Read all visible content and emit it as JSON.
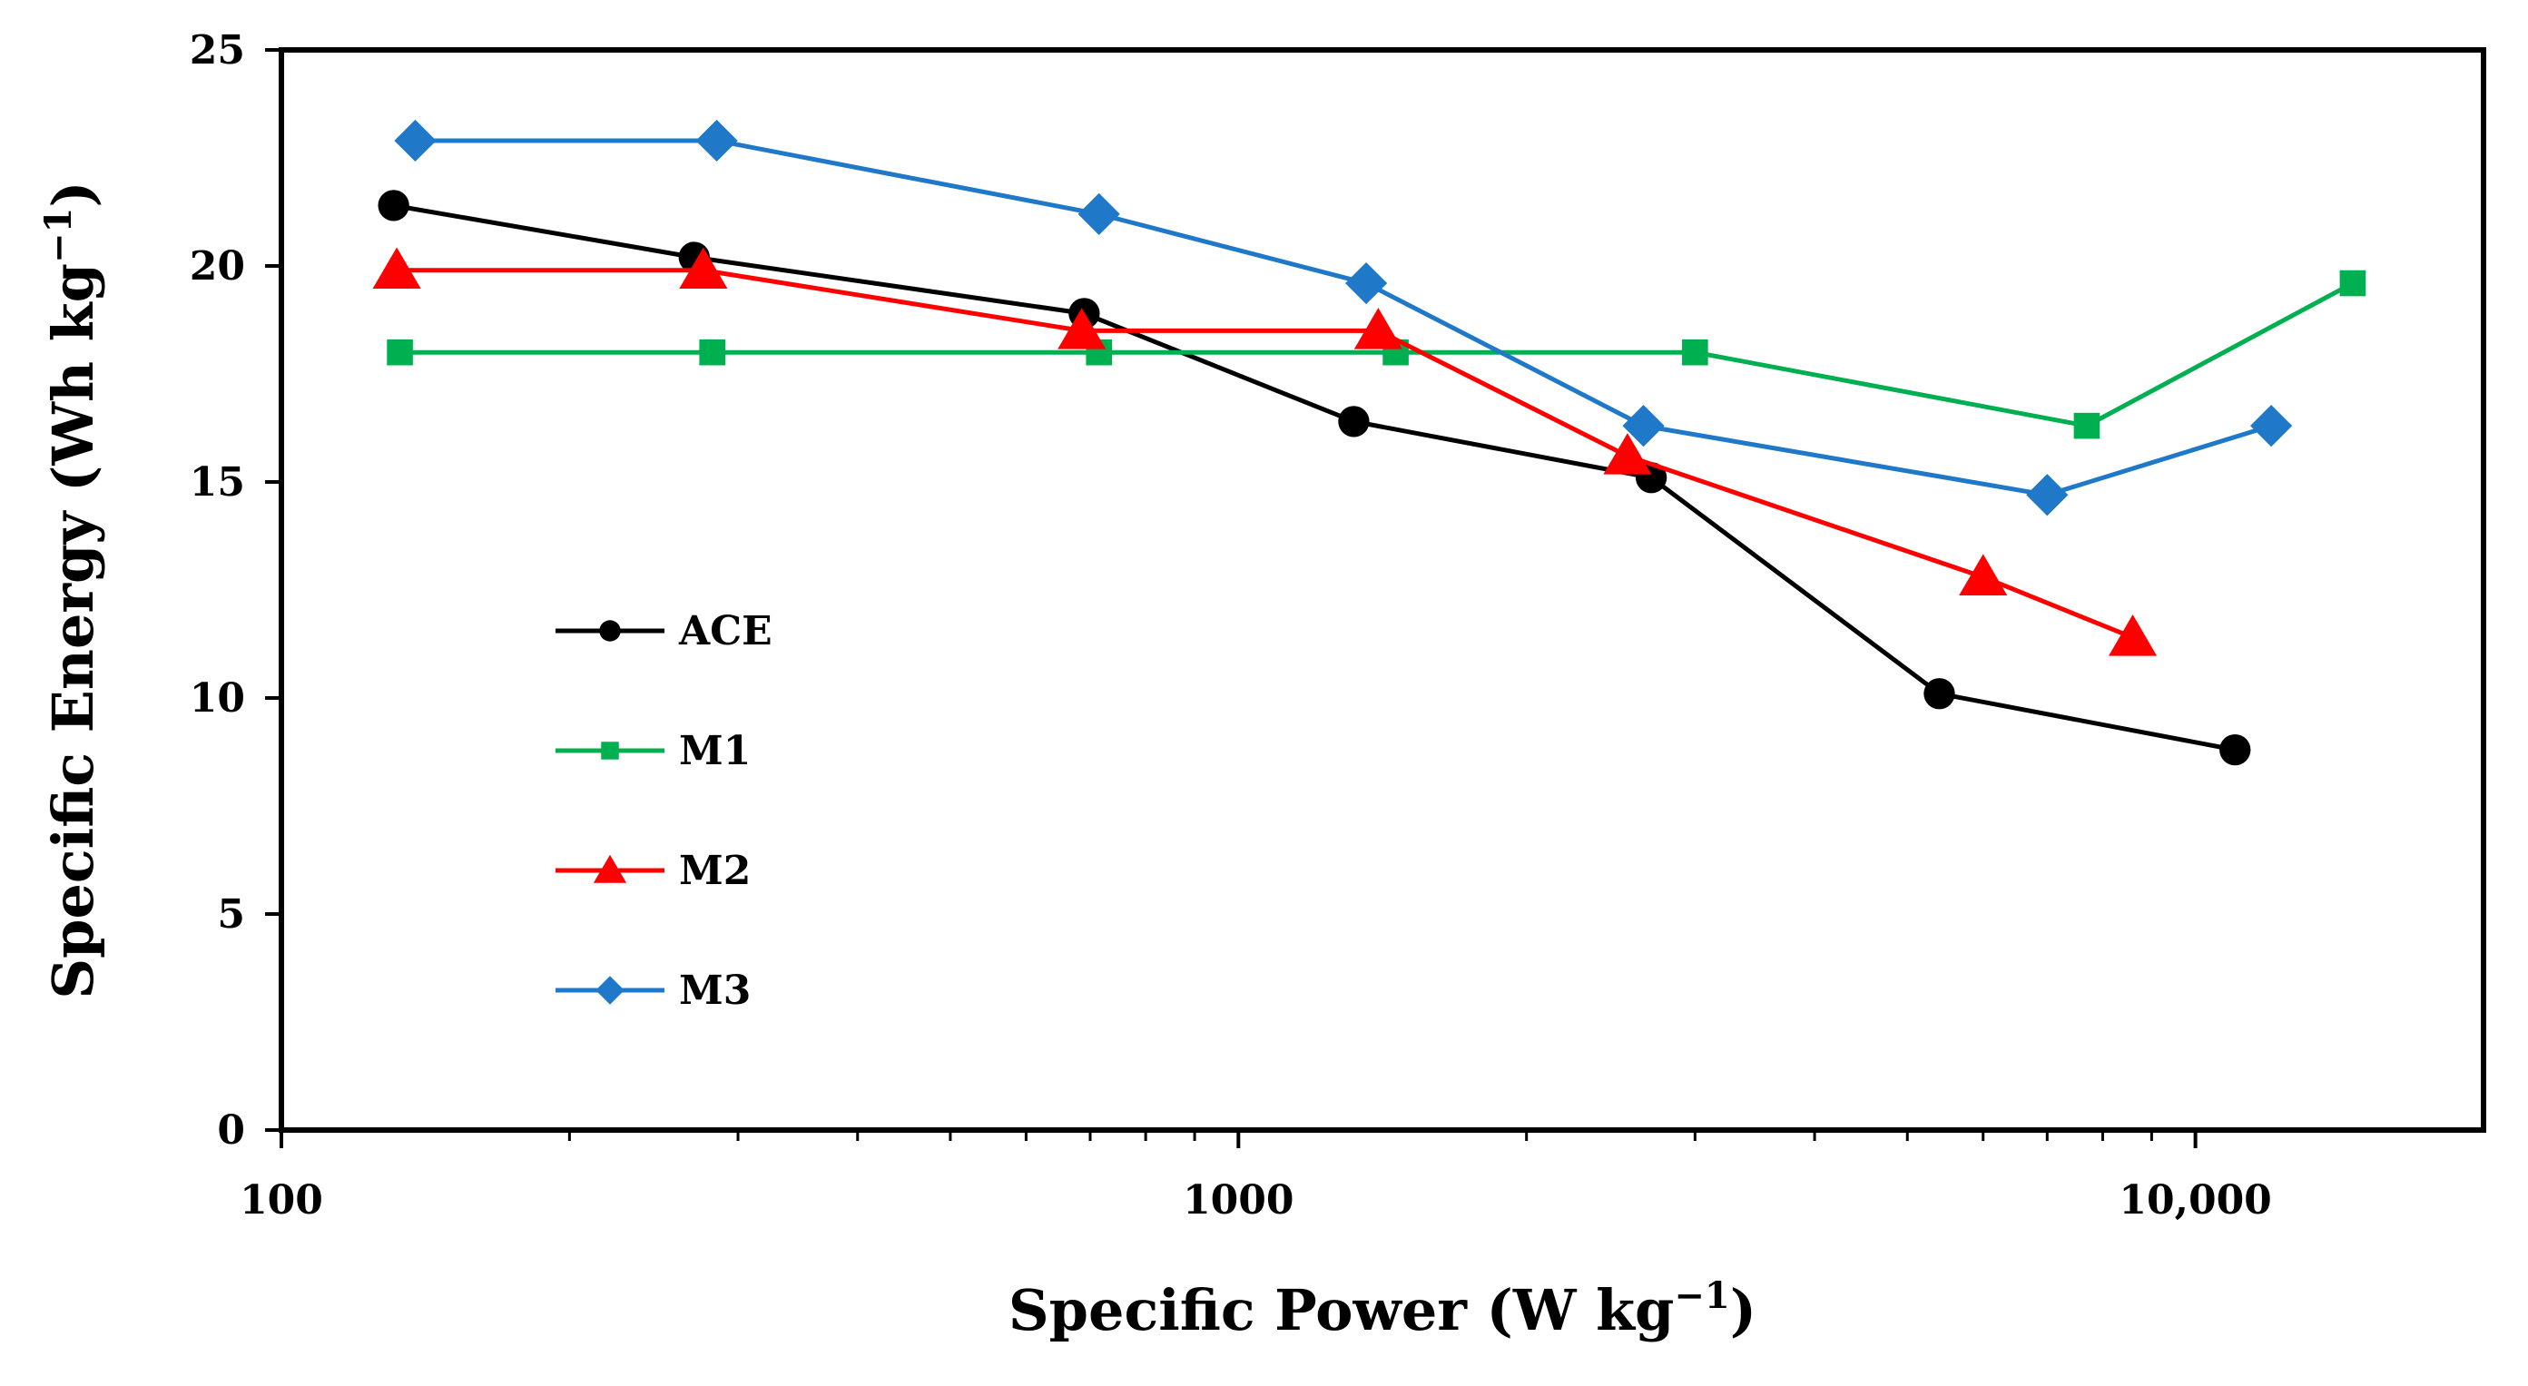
{
  "chart_data": {
    "type": "line",
    "title": "",
    "xlabel": "Specific Power (W kg",
    "xlabel_sup": "−1",
    "xlabel_close": ")",
    "ylabel": "Specific Energy (Wh kg",
    "ylabel_sup": "−1",
    "ylabel_close": ")",
    "xscale": "log",
    "xlim": [
      100,
      20000
    ],
    "ylim": [
      0,
      25
    ],
    "x_ticks": [
      {
        "value": 100,
        "label": "100"
      },
      {
        "value": 1000,
        "label": "1000"
      },
      {
        "value": 10000,
        "label": "10,000"
      }
    ],
    "y_ticks": [
      {
        "value": 0,
        "label": "0"
      },
      {
        "value": 5,
        "label": "5"
      },
      {
        "value": 10,
        "label": "10"
      },
      {
        "value": 15,
        "label": "15"
      },
      {
        "value": 20,
        "label": "20"
      },
      {
        "value": 25,
        "label": "25"
      }
    ],
    "legend_position": "center-left",
    "series": [
      {
        "name": "ACE",
        "color": "#000000",
        "marker": "circle",
        "x": [
          131,
          270,
          690,
          1320,
          2700,
          5400,
          11000
        ],
        "y": [
          21.4,
          20.2,
          18.9,
          16.4,
          15.1,
          10.1,
          8.8
        ]
      },
      {
        "name": "M1",
        "color": "#00b050",
        "marker": "square",
        "x": [
          133,
          282,
          715,
          1460,
          3000,
          7700,
          14600
        ],
        "y": [
          18.0,
          18.0,
          18.0,
          18.0,
          18.0,
          16.3,
          19.6
        ]
      },
      {
        "name": "M2",
        "color": "#ff0000",
        "marker": "triangle",
        "x": [
          132,
          276,
          686,
          1400,
          2550,
          6000,
          8600
        ],
        "y": [
          19.9,
          19.9,
          18.5,
          18.5,
          15.6,
          12.8,
          11.4
        ]
      },
      {
        "name": "M3",
        "color": "#1f78c8",
        "marker": "diamond",
        "x": [
          138,
          285,
          715,
          1360,
          2650,
          7000,
          12000
        ],
        "y": [
          22.9,
          22.9,
          21.2,
          19.6,
          16.3,
          14.7,
          16.3
        ]
      }
    ]
  }
}
